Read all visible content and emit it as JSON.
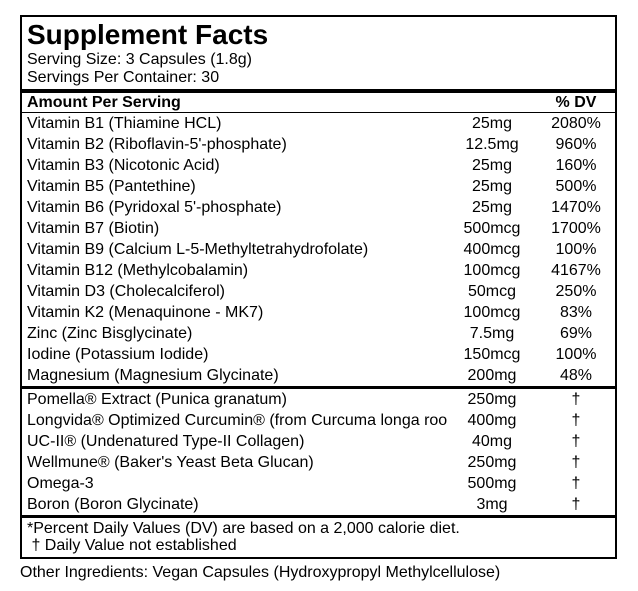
{
  "label": {
    "title": "Supplement Facts",
    "serving_size": "Serving Size: 3 Capsules (1.8g)",
    "servings_per_container": "Servings Per Container: 30",
    "column_headers": {
      "amount": "Amount Per Serving",
      "dv": "% DV"
    },
    "nutrient_rows": [
      {
        "name": "Vitamin B1 (Thiamine HCL)",
        "amount": "25mg",
        "dv": "2080%"
      },
      {
        "name": "Vitamin B2 (Riboflavin-5'-phosphate)",
        "amount": "12.5mg",
        "dv": "960%"
      },
      {
        "name": "Vitamin B3 (Nicotonic Acid)",
        "amount": "25mg",
        "dv": "160%"
      },
      {
        "name": "Vitamin B5 (Pantethine)",
        "amount": "25mg",
        "dv": "500%"
      },
      {
        "name": "Vitamin B6 (Pyridoxal 5'-phosphate)",
        "amount": "25mg",
        "dv": "1470%"
      },
      {
        "name": "Vitamin B7 (Biotin)",
        "amount": "500mcg",
        "dv": "1700%"
      },
      {
        "name": "Vitamin B9 (Calcium L-5-Methyltetrahydrofolate)",
        "amount": "400mcg",
        "dv": "100%"
      },
      {
        "name": "Vitamin B12 (Methylcobalamin)",
        "amount": "100mcg",
        "dv": "4167%"
      },
      {
        "name": "Vitamin D3 (Cholecalciferol)",
        "amount": "50mcg",
        "dv": "250%"
      },
      {
        "name": "Vitamin K2 (Menaquinone - MK7)",
        "amount": "100mcg",
        "dv": "83%"
      },
      {
        "name": "Zinc (Zinc Bisglycinate)",
        "amount": "7.5mg",
        "dv": "69%"
      },
      {
        "name": "Iodine (Potassium Iodide)",
        "amount": "150mcg",
        "dv": "100%"
      },
      {
        "name": "Magnesium (Magnesium Glycinate)",
        "amount": "200mg",
        "dv": "48%"
      }
    ],
    "blend_rows": [
      {
        "name": "Pomella® Extract (Punica granatum)",
        "amount": "250mg",
        "dv": "†"
      },
      {
        "name": "Longvida® Optimized Curcumin® (from Curcuma longa root)",
        "amount": "400mg",
        "dv": "†"
      },
      {
        "name": "UC-II® (Undenatured Type-II Collagen)",
        "amount": "40mg",
        "dv": "†"
      },
      {
        "name": "Wellmune® (Baker's Yeast Beta Glucan)",
        "amount": "250mg",
        "dv": "†"
      },
      {
        "name": "Omega-3",
        "amount": "500mg",
        "dv": "†"
      },
      {
        "name": "Boron (Boron Glycinate)",
        "amount": "3mg",
        "dv": "†"
      }
    ],
    "footnotes": [
      "*Percent Daily Values (DV) are based on a 2,000 calorie diet.",
      " † Daily Value not established"
    ],
    "other_ingredients": "Other Ingredients: Vegan Capsules (Hydroxypropyl Methylcellulose)"
  },
  "colors": {
    "text": "#000000",
    "background": "#ffffff",
    "border": "#000000"
  }
}
